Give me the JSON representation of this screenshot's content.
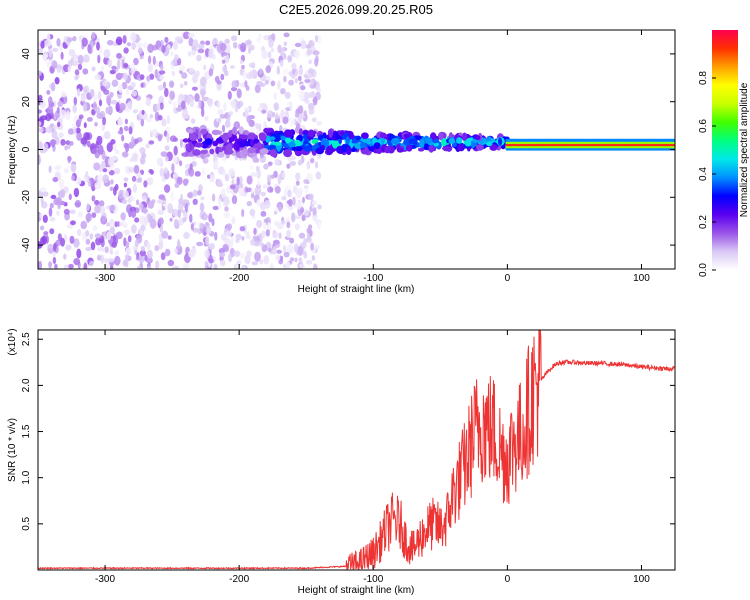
{
  "title": "C2E5.2026.099.20.25.R05",
  "chart_data": [
    {
      "type": "heatmap",
      "xlabel": "Height of straight line (km)",
      "ylabel": "Frequency (Hz)",
      "xlim": [
        -350,
        125
      ],
      "ylim": [
        -50,
        50
      ],
      "xticks": [
        -300,
        -200,
        -100,
        0,
        100
      ],
      "yticks": [
        -40,
        -20,
        0,
        20,
        40
      ],
      "colorbar": {
        "label": "Normalized spectral amplitude",
        "range": [
          0,
          1
        ],
        "ticks": [
          "0.0",
          "0.2",
          "0.4",
          "0.6",
          "0.8"
        ],
        "colormap": [
          "#ffffff",
          "#d9c8f5",
          "#9a55e8",
          "#5a00f0",
          "#0000ff",
          "#0090ff",
          "#00e8e8",
          "#00ff80",
          "#40ff00",
          "#c8ff00",
          "#ffff00",
          "#ffa000",
          "#ff3000",
          "#ff0050"
        ]
      },
      "regions": [
        {
          "name": "broadband noise",
          "x": [
            -350,
            -140
          ],
          "y": [
            -50,
            48
          ],
          "amplitude": 0.1
        },
        {
          "name": "narrow band",
          "x": [
            -240,
            0
          ],
          "y_center": 3,
          "y_halfwidth": [
            6,
            2
          ],
          "amplitude": [
            0.35,
            0.55
          ]
        },
        {
          "name": "line signal",
          "x": [
            0,
            125
          ],
          "y_center": 2,
          "y_halfwidth": 2,
          "amplitude": 0.95
        }
      ]
    },
    {
      "type": "line",
      "xlabel": "Height of straight line (km)",
      "ylabel": "SNR (10 * v/v)",
      "multiplier": "(x10⁴)",
      "xlim": [
        -350,
        125
      ],
      "ylim": [
        0,
        2.6
      ],
      "xticks": [
        -300,
        -200,
        -100,
        0,
        100
      ],
      "yticks": [
        "0.5",
        "1.0",
        "1.5",
        "2.0",
        "2.5"
      ],
      "series": [
        {
          "name": "SNR",
          "color": "#ee3333",
          "x": [
            -350,
            -300,
            -250,
            -200,
            -150,
            -120,
            -110,
            -100,
            -95,
            -90,
            -85,
            -80,
            -75,
            -70,
            -65,
            -60,
            -55,
            -50,
            -45,
            -40,
            -35,
            -30,
            -25,
            -20,
            -15,
            -10,
            -5,
            0,
            5,
            10,
            15,
            20,
            25,
            30,
            35,
            40,
            50,
            60,
            70,
            80,
            90,
            100,
            110,
            120,
            125
          ],
          "y": [
            0.02,
            0.02,
            0.02,
            0.02,
            0.02,
            0.04,
            0.08,
            0.18,
            0.3,
            0.45,
            0.55,
            0.5,
            0.3,
            0.22,
            0.35,
            0.45,
            0.5,
            0.45,
            0.55,
            0.85,
            1.0,
            1.2,
            1.45,
            1.6,
            1.55,
            1.5,
            1.3,
            1.2,
            1.4,
            1.45,
            1.7,
            1.95,
            2.05,
            2.15,
            2.22,
            2.25,
            2.25,
            2.24,
            2.24,
            2.23,
            2.22,
            2.2,
            2.19,
            2.18,
            2.18
          ]
        }
      ]
    }
  ]
}
